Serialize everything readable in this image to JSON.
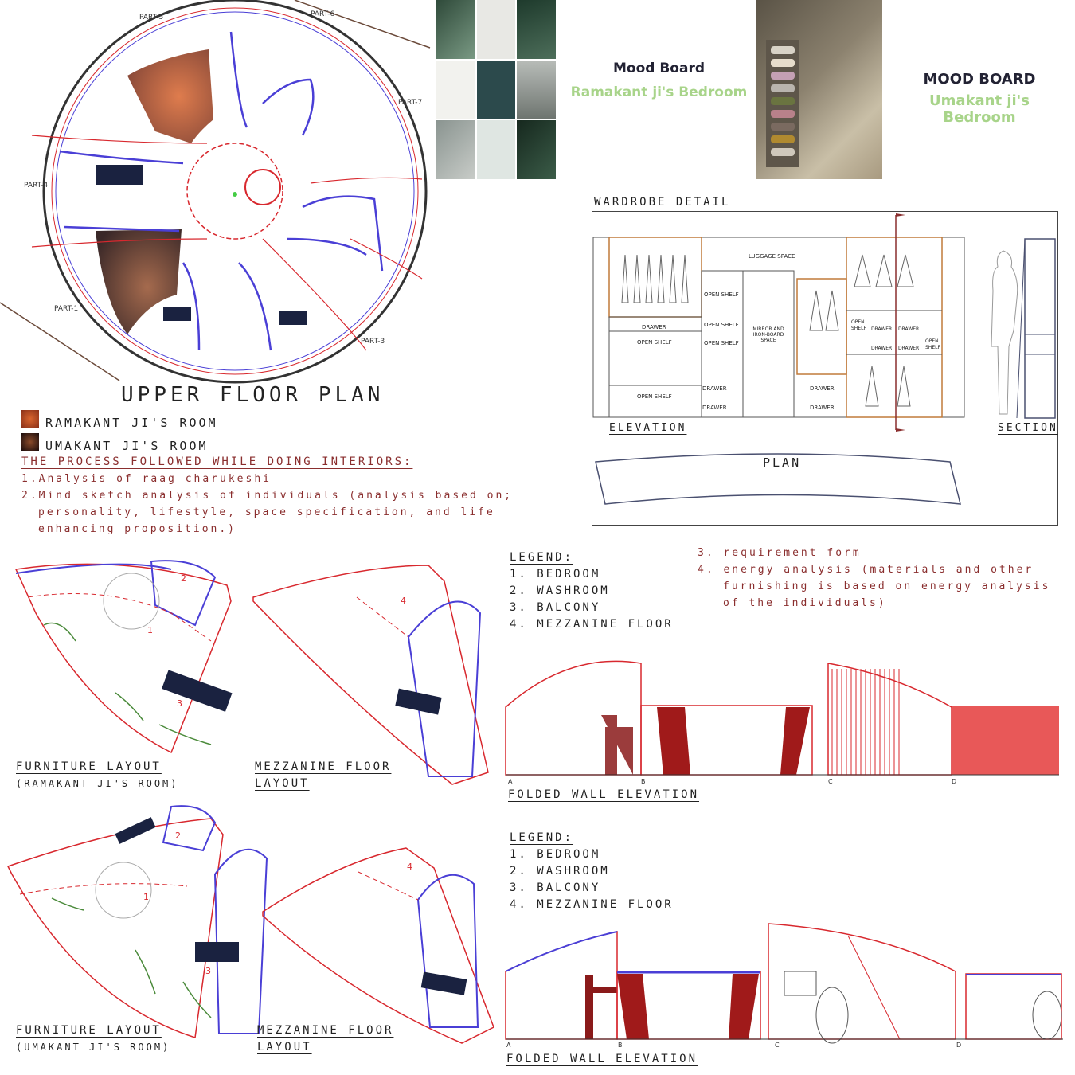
{
  "floor_plan": {
    "title": "UPPER FLOOR PLAN",
    "parts": [
      "PART-1",
      "PART-3",
      "PART-4",
      "PART-5",
      "PART-6",
      "PART-7"
    ],
    "legend": [
      {
        "label": "RAMAKANT JI'S ROOM",
        "color": "#b0502a"
      },
      {
        "label": "UMAKANT JI'S ROOM",
        "color": "#4a2a2a"
      }
    ]
  },
  "process": {
    "heading": "THE PROCESS FOLLOWED WHILE DOING INTERIORS:",
    "steps": [
      "1.Analysis of raag charukeshi",
      "2.Mind sketch analysis of individuals (analysis based on;",
      "personality, lifestyle, space specification, and life",
      "enhancing proposition.)"
    ],
    "steps_more": [
      "3. requirement form",
      "4. energy analysis (materials and other",
      "furnishing is based on energy analysis",
      "of the individuals)"
    ]
  },
  "mood_boards": [
    {
      "title": "Mood Board",
      "subtitle": "Ramakant ji's Bedroom"
    },
    {
      "title": "MOOD BOARD",
      "subtitle": "Umakant ji's Bedroom"
    }
  ],
  "wardrobe": {
    "title": "WARDROBE DETAIL",
    "labels": {
      "luggage": "LUGGAGE SPACE",
      "open_shelf": "OPEN SHELF",
      "drawer": "DRAWER",
      "mirror": "MIRROR AND IRON-BOARD SPACE",
      "open": "OPEN",
      "shelf": "SHELF"
    },
    "elevation": "ELEVATION",
    "section": "SECTION",
    "plan": "PLAN"
  },
  "legend_block": {
    "heading": "LEGEND:",
    "items": [
      "1. BEDROOM",
      "2. WASHROOM",
      "3. BALCONY",
      "4. MEZZANINE FLOOR"
    ]
  },
  "layouts": {
    "furniture_1": {
      "title": "FURNITURE LAYOUT",
      "subtitle": "(RAMAKANT JI'S ROOM)"
    },
    "mezz_1": {
      "title": "MEZZANINE FLOOR",
      "subtitle": "LAYOUT"
    },
    "furniture_2": {
      "title": "FURNITURE LAYOUT",
      "subtitle": "(UMAKANT JI'S ROOM)"
    },
    "mezz_2": {
      "title": "MEZZANINE FLOOR",
      "subtitle": "LAYOUT"
    },
    "room_numbers": [
      "1",
      "2",
      "3",
      "4"
    ]
  },
  "elevations": {
    "title_1": "FOLDED WALL ELEVATION",
    "title_2": "FOLDED WALL ELEVATION",
    "markers": [
      "A",
      "B",
      "C",
      "D"
    ]
  },
  "colors": {
    "accent_red": "#d8282e",
    "text_red": "#8a2e2e",
    "blue": "#4a3fd6",
    "navy": "#1a2240"
  }
}
